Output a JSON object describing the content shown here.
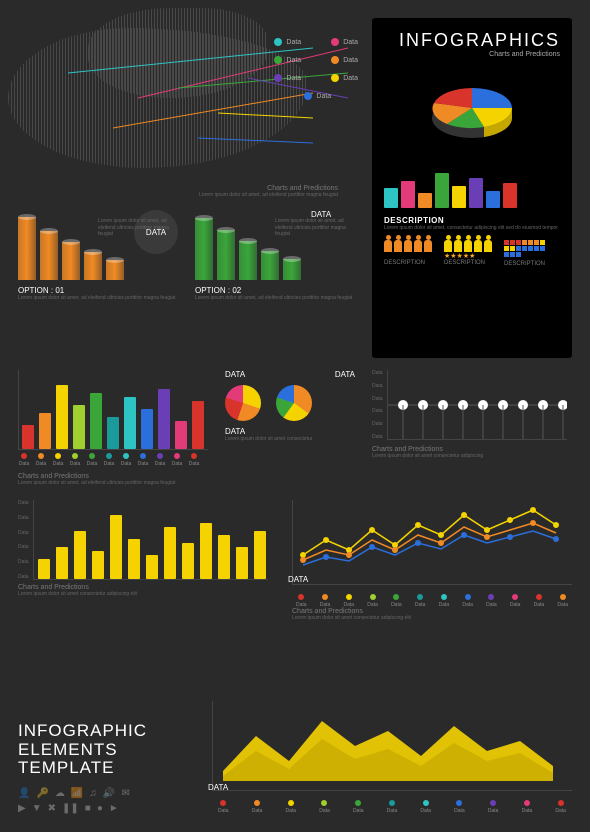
{
  "header": {
    "title": "INFOGRAPHICS",
    "subtitle": "Charts and Predictions"
  },
  "colors": {
    "bg": "#2a2a2a",
    "panel": "#000000",
    "text": "#ffffff",
    "muted": "#787878",
    "cyan": "#2ec4c4",
    "magenta": "#e33a7a",
    "orange": "#f08a24",
    "yellow": "#f5d300",
    "purple": "#6a3fb5",
    "green": "#3aa63a",
    "blue": "#2a6fdb",
    "red": "#d9342b",
    "lime": "#a0d030",
    "teal": "#1a9a9a"
  },
  "map": {
    "markers": [
      {
        "label": "Data",
        "color": "#2ec4c4",
        "x": 50,
        "y": 55
      },
      {
        "label": "Data",
        "color": "#e33a7a",
        "x": 120,
        "y": 80
      },
      {
        "label": "Data",
        "color": "#f08a24",
        "x": 95,
        "y": 110
      },
      {
        "label": "Data",
        "color": "#3aa63a",
        "x": 160,
        "y": 70
      },
      {
        "label": "Data",
        "color": "#f5d300",
        "x": 200,
        "y": 95
      },
      {
        "label": "Data",
        "color": "#6a3fb5",
        "x": 230,
        "y": 60
      },
      {
        "label": "Data",
        "color": "#2a6fdb",
        "x": 180,
        "y": 120
      }
    ],
    "caption": "Charts and Predictions",
    "lorem": "Lorem ipsum dolor sit amet, ad eleifend porttitor magna feugiat"
  },
  "pie3d": {
    "slices": [
      {
        "color": "#f5d300",
        "pct": 30
      },
      {
        "color": "#3aa63a",
        "pct": 25
      },
      {
        "color": "#f08a24",
        "pct": 20
      },
      {
        "color": "#d9342b",
        "pct": 15
      },
      {
        "color": "#2a6fdb",
        "pct": 10
      }
    ]
  },
  "mini_bars": {
    "values": [
      40,
      55,
      30,
      70,
      45,
      60,
      35,
      50
    ],
    "colors": [
      "#2ec4c4",
      "#e33a7a",
      "#f08a24",
      "#3aa63a",
      "#f5d300",
      "#6a3fb5",
      "#2a6fdb",
      "#d9342b"
    ]
  },
  "desc_section": {
    "title": "DESCRIPTION",
    "lorem": "Lorem ipsum dolor sit amet, consectetur adipiscing elit sed do eiusmod tempor"
  },
  "people": {
    "rows": [
      {
        "color": "#f08a24",
        "count": 6,
        "label": "DESCRIPTION"
      },
      {
        "color": "#f5d300",
        "count": 6,
        "label": "DESCRIPTION",
        "stars": 5
      },
      {
        "color": "#2a6fdb",
        "count": 6,
        "label": "DESCRIPTION",
        "grid": true
      }
    ]
  },
  "cylinders": {
    "opt1": {
      "title": "DATA",
      "option_label": "OPTION : 01",
      "color": "#f08a24",
      "values": [
        90,
        70,
        55,
        40,
        28
      ],
      "lorem": "Lorem ipsum dolor sit amet, ad eleifend ultricies porttitor magna feugiat"
    },
    "opt2": {
      "title": "DATA",
      "option_label": "OPTION : 02",
      "color": "#3aa63a",
      "values": [
        88,
        72,
        56,
        42,
        30
      ],
      "lorem": "Lorem ipsum dolor sit amet, ad eleifend ultricies porttitor magna feugiat"
    }
  },
  "rainbow_bars": {
    "values": [
      30,
      45,
      80,
      55,
      70,
      40,
      65,
      50,
      75,
      35,
      60
    ],
    "colors": [
      "#d9342b",
      "#f08a24",
      "#f5d300",
      "#a0d030",
      "#3aa63a",
      "#1a9a9a",
      "#2ec4c4",
      "#2a6fdb",
      "#6a3fb5",
      "#e33a7a",
      "#d9342b"
    ],
    "labels": [
      "Data",
      "Data",
      "Data",
      "Data",
      "Data",
      "Data",
      "Data",
      "Data",
      "Data",
      "Data",
      "Data"
    ],
    "caption": "Charts and Predictions"
  },
  "pie_pair": {
    "label": "DATA",
    "p1": {
      "colors": [
        "#f5d300",
        "#f08a24",
        "#d9342b",
        "#e33a7a"
      ],
      "pcts": [
        30,
        25,
        25,
        20
      ]
    },
    "p2": {
      "colors": [
        "#f08a24",
        "#f5d300",
        "#3aa63a",
        "#2a6fdb"
      ],
      "pcts": [
        35,
        25,
        20,
        20
      ]
    },
    "lorem": "Lorem ipsum dolor sit amet consectetur"
  },
  "dot_line": {
    "label": "DATA",
    "y_labels": [
      "Data",
      "Data",
      "Data",
      "Data",
      "Data",
      "Data"
    ],
    "points": [
      35,
      35,
      35,
      35,
      35,
      35,
      35,
      35,
      35
    ],
    "caption": "Charts and Predictions",
    "lorem": "Lorem ipsum dolor sit amet consectetur adipiscing"
  },
  "yellow_bars": {
    "y_labels": [
      "Data",
      "Data",
      "Data",
      "Data",
      "Data",
      "Data"
    ],
    "values": [
      25,
      40,
      60,
      35,
      80,
      50,
      30,
      65,
      45,
      70,
      55,
      40,
      60
    ],
    "color": "#f5d300",
    "caption": "Charts and Predictions",
    "lorem": "Lorem ipsum dolor sit amet consectetur adipiscing elit"
  },
  "multi_line": {
    "label": "DATA",
    "series": [
      {
        "color": "#f5d300",
        "pts": [
          30,
          45,
          35,
          55,
          40,
          60,
          50,
          70,
          55,
          65,
          75,
          60
        ]
      },
      {
        "color": "#f08a24",
        "pts": [
          25,
          35,
          30,
          45,
          35,
          50,
          42,
          58,
          48,
          55,
          62,
          52
        ]
      },
      {
        "color": "#2a6fdb",
        "pts": [
          20,
          28,
          24,
          38,
          30,
          42,
          36,
          50,
          42,
          48,
          54,
          46
        ]
      }
    ],
    "x_dots": [
      "#d9342b",
      "#f08a24",
      "#f5d300",
      "#a0d030",
      "#3aa63a",
      "#1a9a9a",
      "#2ec4c4",
      "#2a6fdb",
      "#6a3fb5",
      "#e33a7a",
      "#d9342b",
      "#f08a24"
    ],
    "x_labels": [
      "Data",
      "Data",
      "Data",
      "Data",
      "Data",
      "Data",
      "Data",
      "Data",
      "Data",
      "Data",
      "Data",
      "Data"
    ],
    "caption": "Charts and Predictions"
  },
  "area_chart": {
    "label": "DATA",
    "color": "#f5d300",
    "pts": [
      10,
      45,
      20,
      60,
      35,
      50,
      25,
      55,
      30,
      40,
      15
    ],
    "x_dots": [
      "#d9342b",
      "#f08a24",
      "#f5d300",
      "#a0d030",
      "#3aa63a",
      "#1a9a9a",
      "#2ec4c4",
      "#2a6fdb",
      "#6a3fb5",
      "#e33a7a",
      "#d9342b"
    ],
    "x_labels": [
      "Data",
      "Data",
      "Data",
      "Data",
      "Data",
      "Data",
      "Data",
      "Data",
      "Data",
      "Data",
      "Data"
    ]
  },
  "footer_block": {
    "line1": "INFOGRAPHIC",
    "line2": "ELEMENTS",
    "line3": "TEMPLATE",
    "icons": [
      "👤",
      "🔑",
      "☁",
      "📶",
      "🎵",
      "🔊",
      "✉",
      "►",
      "⬇",
      "✖",
      "❚❚",
      "■",
      "●",
      "▶"
    ]
  }
}
